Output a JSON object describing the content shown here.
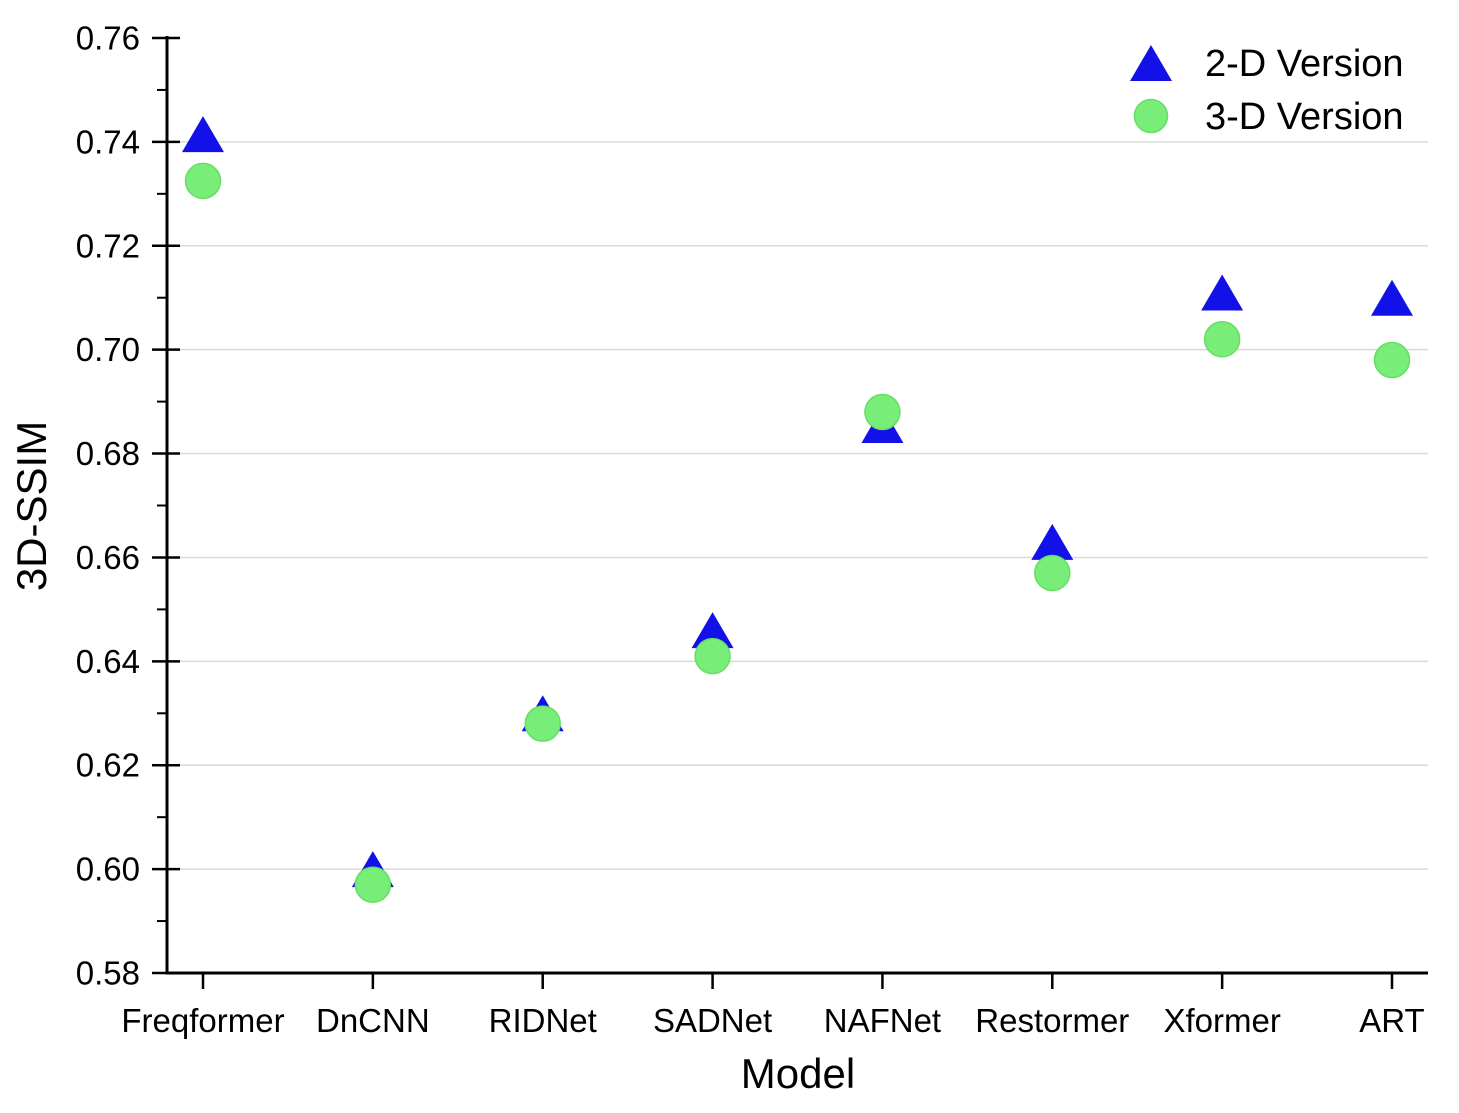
{
  "chart_data": {
    "type": "scatter",
    "title": "",
    "xlabel": "Model",
    "ylabel": "3D-SSIM",
    "categories": [
      "Freqformer",
      "DnCNN",
      "RIDNet",
      "SADNet",
      "NAFNet",
      "Restormer",
      "Xformer",
      "ART"
    ],
    "series": [
      {
        "name": "2-D Version",
        "marker": "triangle-up",
        "color": "#1212e8",
        "values": [
          0.7415,
          0.6,
          0.63,
          0.646,
          0.6855,
          0.663,
          0.711,
          0.71
        ]
      },
      {
        "name": "3-D Version",
        "marker": "circle",
        "color": "#78ee78",
        "marker_edge_color": "#66dd66",
        "values": [
          0.7325,
          0.597,
          0.628,
          0.641,
          0.688,
          0.657,
          0.702,
          0.698
        ]
      }
    ],
    "ylim": [
      0.58,
      0.76
    ],
    "ytick_step": 0.02,
    "yminor_step": 0.01,
    "ytick_labels": [
      "0.58",
      "0.60",
      "0.62",
      "0.64",
      "0.66",
      "0.68",
      "0.70",
      "0.72",
      "0.74",
      "0.76"
    ],
    "grid": "horizontal-major-only",
    "gridline_color": "#d9d9d9",
    "axis_color": "#000000",
    "legend_position": "top-right",
    "legend": [
      "2-D Version",
      "3-D Version"
    ]
  }
}
